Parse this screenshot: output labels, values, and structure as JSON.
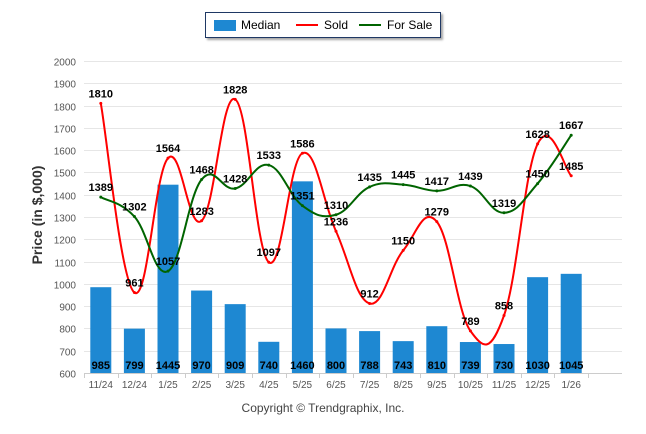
{
  "chart_data": {
    "type": "bar+line",
    "title": "",
    "xlabel": "",
    "ylabel": "Price (in $,000)",
    "ylim": [
      600,
      2000
    ],
    "yticks": [
      600,
      700,
      800,
      900,
      1000,
      1100,
      1200,
      1300,
      1400,
      1500,
      1600,
      1700,
      1800,
      1900,
      2000
    ],
    "grid": true,
    "legend_position": "top-center",
    "categories": [
      "11/24",
      "12/24",
      "1/25",
      "2/25",
      "3/25",
      "4/25",
      "5/25",
      "6/25",
      "7/25",
      "8/25",
      "9/25",
      "10/25",
      "11/25",
      "12/25",
      "1/26"
    ],
    "series": [
      {
        "name": "Median",
        "type": "bar",
        "color": "#1e88d2",
        "values": [
          985,
          799,
          1445,
          970,
          909,
          740,
          1460,
          800,
          788,
          743,
          810,
          739,
          730,
          1030,
          1045
        ]
      },
      {
        "name": "Sold",
        "type": "line",
        "color": "#ff0000",
        "values": [
          1810,
          961,
          1564,
          1283,
          1828,
          1097,
          1586,
          1236,
          912,
          1150,
          1279,
          789,
          858,
          1628,
          1485
        ]
      },
      {
        "name": "For Sale",
        "type": "line",
        "color": "#006400",
        "values": [
          1389,
          1302,
          1057,
          1468,
          1428,
          1533,
          1351,
          1310,
          1435,
          1445,
          1417,
          1439,
          1319,
          1450,
          1667
        ]
      }
    ]
  },
  "legend": {
    "median": "Median",
    "sold": "Sold",
    "for_sale": "For Sale"
  },
  "footer": "Copyright © Trendgraphix, Inc."
}
